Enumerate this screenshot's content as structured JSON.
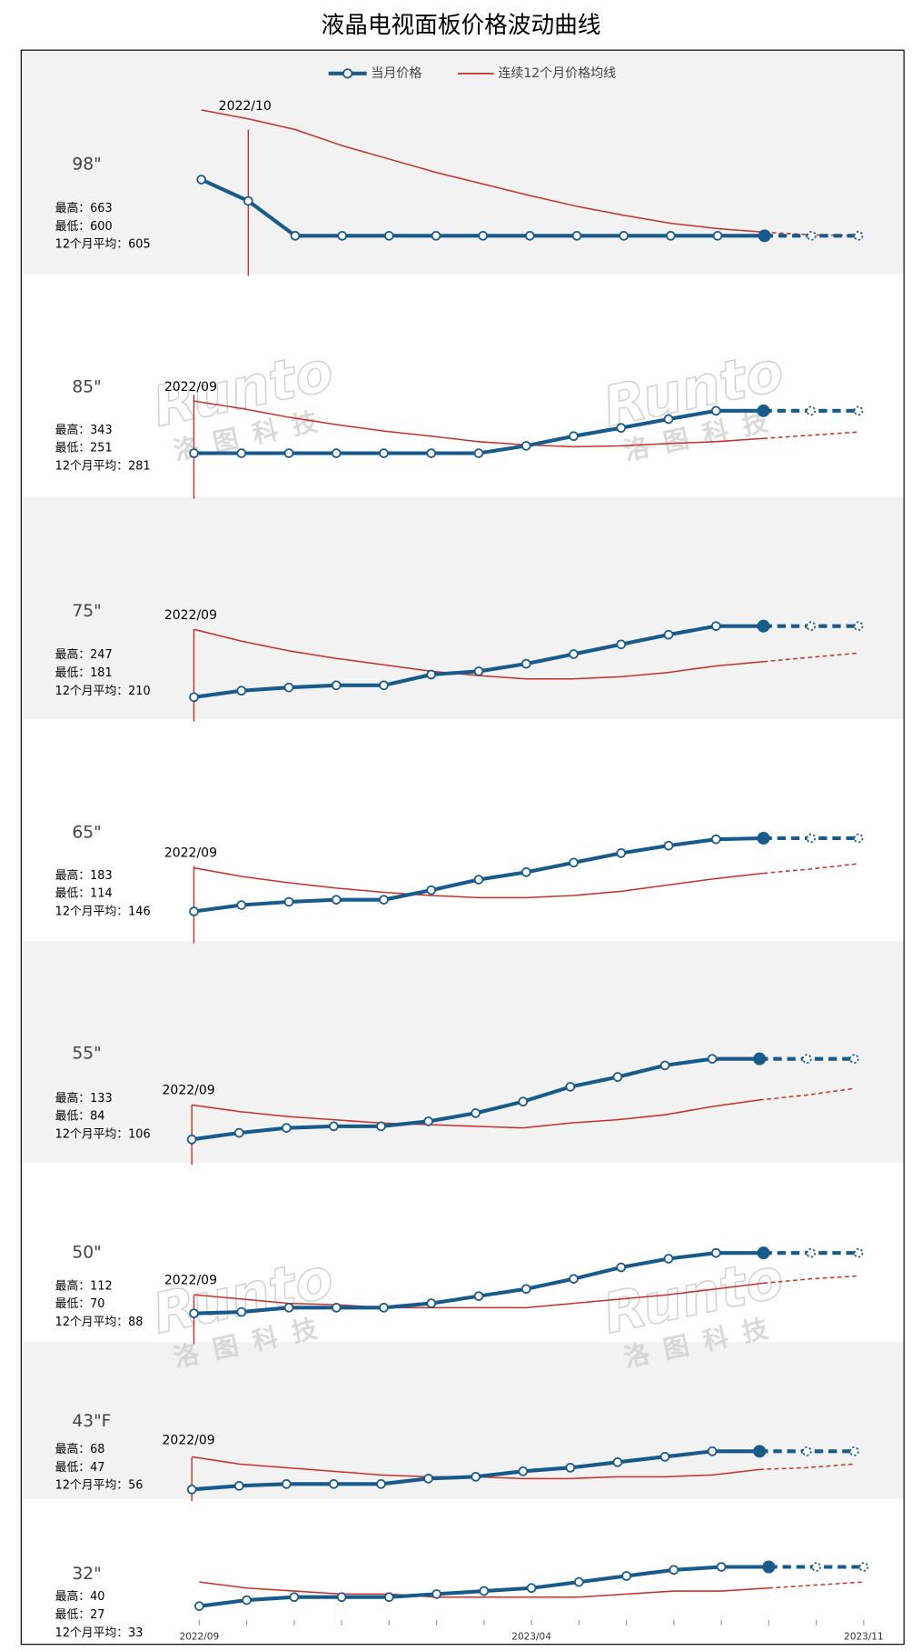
{
  "chart_data": {
    "type": "line",
    "title": "液晶电视面板价格波动曲线",
    "x": [
      "2022/09",
      null,
      null,
      null,
      null,
      null,
      null,
      "2023/04",
      null,
      null,
      null,
      null,
      null,
      null,
      "2023/11"
    ],
    "dashed_after": 12,
    "series_names": [
      "当月价格",
      "连续12个月价格均线"
    ],
    "colors": [
      "#175a8c",
      "#c8302a"
    ],
    "watermark": {
      "brand": "Runto",
      "name": "洛图科技"
    },
    "panels": [
      {
        "name": "98\"",
        "annotation": "2022/10",
        "annotation_x": 1,
        "stats": [
          {
            "label": "最高：",
            "value": 663
          },
          {
            "label": "最低：",
            "value": 600
          },
          {
            "label": "12个月平均：",
            "value": 605
          }
        ],
        "values": [
          663,
          639,
          600,
          600,
          600,
          600,
          600,
          600,
          600,
          600,
          600,
          600,
          600,
          600,
          600
        ],
        "average": [
          741,
          731,
          719,
          701,
          686,
          671,
          658,
          645,
          633,
          623,
          614,
          608,
          604,
          601,
          600
        ]
      },
      {
        "name": "85\"",
        "annotation": "2022/09",
        "annotation_x": 0,
        "stats": [
          {
            "label": "最高：",
            "value": 343
          },
          {
            "label": "最低：",
            "value": 251
          },
          {
            "label": "12个月平均：",
            "value": 281
          }
        ],
        "values": [
          251,
          251,
          251,
          251,
          251,
          251,
          251,
          267,
          288,
          306,
          325,
          343,
          343,
          343,
          343
        ],
        "average": [
          364,
          348,
          329,
          313,
          299,
          288,
          276,
          269,
          265,
          267,
          272,
          276,
          283,
          290,
          297
        ]
      },
      {
        "name": "75\"",
        "annotation": "2022/09",
        "annotation_x": 0,
        "stats": [
          {
            "label": "最高：",
            "value": 247
          },
          {
            "label": "最低：",
            "value": 181
          },
          {
            "label": "12个月平均：",
            "value": 210
          }
        ],
        "values": [
          181,
          187,
          190,
          192,
          192,
          202,
          205,
          212,
          221,
          230,
          239,
          247,
          247,
          247,
          247
        ],
        "average": [
          244,
          233,
          224,
          217,
          211,
          205,
          201,
          198,
          198,
          200,
          204,
          210,
          214,
          218,
          222
        ]
      },
      {
        "name": "65\"",
        "annotation": "2022/09",
        "annotation_x": 0,
        "stats": [
          {
            "label": "最高：",
            "value": 183
          },
          {
            "label": "最低：",
            "value": 114
          },
          {
            "label": "12个月平均：",
            "value": 146
          }
        ],
        "values": [
          114,
          120,
          123,
          125,
          125,
          134,
          144,
          151,
          160,
          169,
          176,
          182,
          183,
          183,
          183
        ],
        "average": [
          155,
          147,
          141,
          136,
          132,
          129,
          127,
          127,
          129,
          133,
          139,
          145,
          150,
          154,
          159
        ]
      },
      {
        "name": "55\"",
        "annotation": "2022/09",
        "annotation_x": 0,
        "stats": [
          {
            "label": "最高：",
            "value": 133
          },
          {
            "label": "最低：",
            "value": 84
          },
          {
            "label": "12个月平均：",
            "value": 106
          }
        ],
        "values": [
          84,
          88,
          91,
          92,
          92,
          95,
          100,
          107,
          116,
          122,
          129,
          133,
          133,
          133,
          133
        ],
        "average": [
          105,
          101,
          98,
          96,
          94,
          93,
          92,
          91,
          94,
          96,
          99,
          104,
          108,
          111,
          115
        ]
      },
      {
        "name": "50\"",
        "annotation": "2022/09",
        "annotation_x": 0,
        "stats": [
          {
            "label": "最高：",
            "value": 112
          },
          {
            "label": "最低：",
            "value": 70
          },
          {
            "label": "12个月平均：",
            "value": 88
          }
        ],
        "values": [
          70,
          71,
          74,
          74,
          74,
          77,
          82,
          87,
          94,
          102,
          108,
          112,
          112,
          112,
          112
        ],
        "average": [
          83,
          80,
          77,
          76,
          74,
          74,
          74,
          74,
          77,
          80,
          83,
          87,
          91,
          94,
          96
        ]
      },
      {
        "name": "43\"F",
        "annotation": "2022/09",
        "annotation_x": 0,
        "stats": [
          {
            "label": "最高：",
            "value": 68
          },
          {
            "label": "最低：",
            "value": 47
          },
          {
            "label": "12个月平均：",
            "value": 56
          }
        ],
        "values": [
          47,
          49,
          50,
          50,
          50,
          53,
          54,
          57,
          59,
          62,
          65,
          68,
          68,
          68,
          68
        ],
        "average": [
          65,
          61,
          59,
          57,
          55,
          54,
          54,
          53,
          53,
          54,
          54,
          55,
          58,
          59,
          61
        ]
      },
      {
        "name": "32\"",
        "stats": [
          {
            "label": "最高：",
            "value": 40
          },
          {
            "label": "最低：",
            "value": 27
          },
          {
            "label": "12个月平均：",
            "value": 33
          }
        ],
        "values": [
          27,
          29,
          30,
          30,
          30,
          31,
          32,
          33,
          35,
          37,
          39,
          40,
          40,
          40,
          40
        ],
        "average": [
          35,
          33,
          32,
          31,
          31,
          30,
          30,
          30,
          30,
          31,
          32,
          32,
          33,
          34,
          35
        ]
      }
    ]
  }
}
